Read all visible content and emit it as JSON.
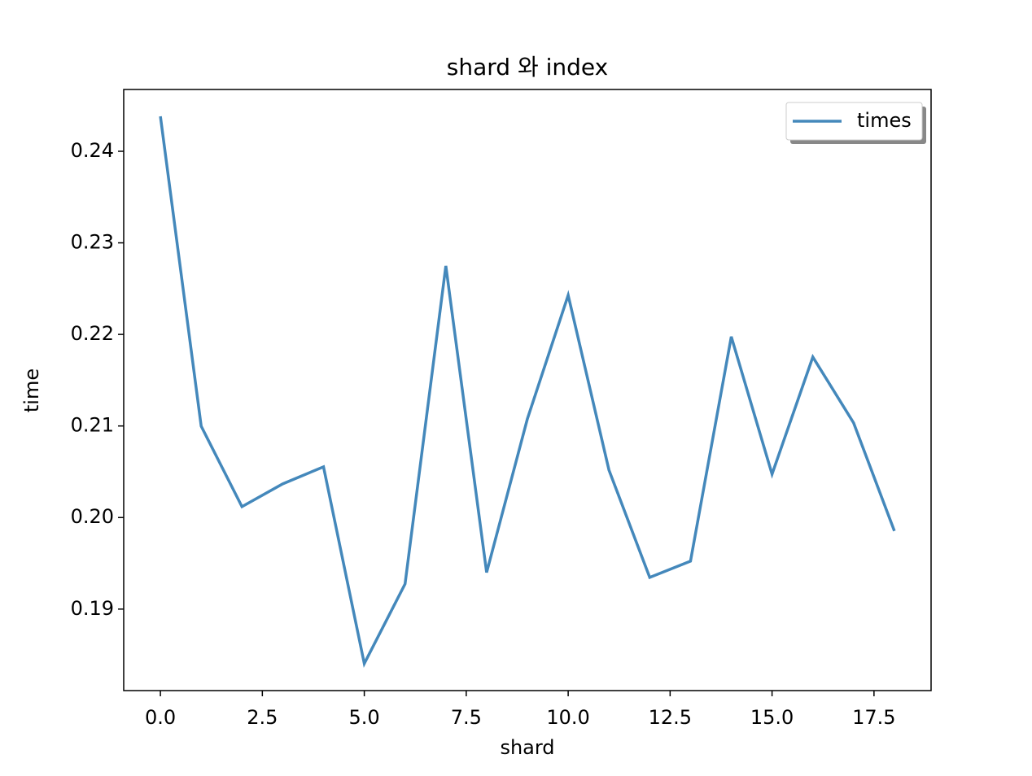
{
  "chart_data": {
    "type": "line",
    "title": "shard 와 index",
    "x_label": "shard",
    "y_label": "time",
    "x": [
      0,
      1,
      2,
      3,
      4,
      5,
      6,
      7,
      8,
      9,
      10,
      11,
      12,
      13,
      14,
      15,
      16,
      17,
      18
    ],
    "series": [
      {
        "name": "times",
        "color": "#4488bb",
        "values": [
          0.24382,
          0.20998,
          0.20119,
          0.20368,
          0.20554,
          0.18405,
          0.19275,
          0.22748,
          0.194,
          0.21078,
          0.22428,
          0.20519,
          0.19346,
          0.19524,
          0.21975,
          0.20474,
          0.21753,
          0.21034,
          0.19853
        ]
      }
    ],
    "xlim": [
      -0.9,
      18.9
    ],
    "xticks": [
      {
        "value": 0,
        "label": "0.0"
      },
      {
        "value": 2.5,
        "label": "2.5"
      },
      {
        "value": 5,
        "label": "5.0"
      },
      {
        "value": 7.5,
        "label": "7.5"
      },
      {
        "value": 10,
        "label": "10.0"
      },
      {
        "value": 12.5,
        "label": "12.5"
      },
      {
        "value": 15,
        "label": "15.0"
      },
      {
        "value": 17.5,
        "label": "17.5"
      }
    ],
    "ylim": [
      0.1811,
      0.24675
    ],
    "yticks": [
      0.19,
      {
        "value": 0.2,
        "label": "0.20"
      },
      0.21,
      0.22,
      0.23,
      0.24
    ],
    "grid": false,
    "legend": "upper-right"
  }
}
